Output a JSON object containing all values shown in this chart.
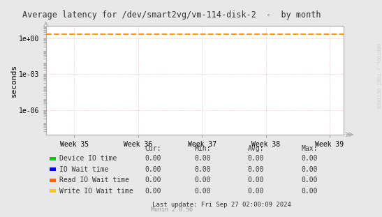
{
  "title": "Average latency for /dev/smart2vg/vm-114-disk-2  -  by month",
  "ylabel": "seconds",
  "watermark": "RRDTOOL / TOBI OETIKER",
  "munin_version": "Munin 2.0.56",
  "last_update": "Last update: Fri Sep 27 02:00:09 2024",
  "x_ticks": [
    "Week 35",
    "Week 36",
    "Week 37",
    "Week 38",
    "Week 39"
  ],
  "y_lim": [
    1e-08,
    10.0
  ],
  "y_ticks": [
    1e-06,
    0.001,
    1.0
  ],
  "bg_color": "#e8e8e8",
  "plot_bg_color": "#ffffff",
  "grid_color_major": "#cccccc",
  "grid_color_minor": "#f0c0c0",
  "dashed_line_color": "#ff9900",
  "dashed_line_y": 2.0,
  "legend_items": [
    {
      "label": "Device IO time",
      "color": "#00cc00"
    },
    {
      "label": "IO Wait time",
      "color": "#0000ff"
    },
    {
      "label": "Read IO Wait time",
      "color": "#ff6600"
    },
    {
      "label": "Write IO Wait time",
      "color": "#ffcc00"
    }
  ],
  "table_headers": [
    "Cur:",
    "Min:",
    "Avg:",
    "Max:"
  ],
  "table_values": [
    [
      "0.00",
      "0.00",
      "0.00",
      "0.00"
    ],
    [
      "0.00",
      "0.00",
      "0.00",
      "0.00"
    ],
    [
      "0.00",
      "0.00",
      "0.00",
      "0.00"
    ],
    [
      "0.00",
      "0.00",
      "0.00",
      "0.00"
    ]
  ]
}
